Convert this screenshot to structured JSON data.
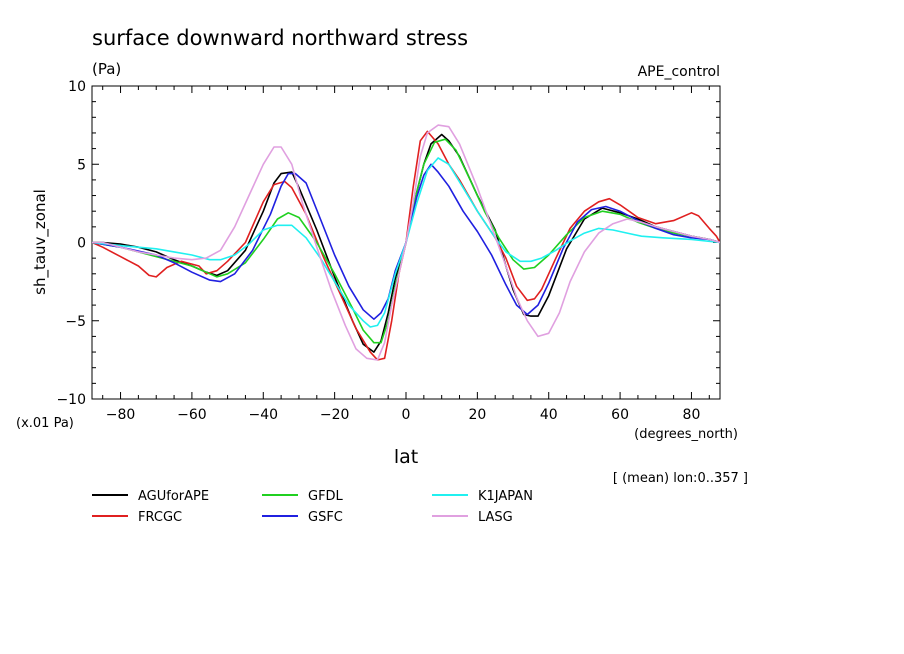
{
  "chart_data": {
    "type": "line",
    "title": "surface downward northward stress",
    "units_label": "(Pa)",
    "experiment_label": "APE_control",
    "ylabel": "sh_tauv_zonal",
    "xlabel": "lat",
    "x_units_label": "(degrees_north)",
    "y_scale_label": "(x.01 Pa)",
    "footnote": "[ (mean) lon:0..357 ]",
    "xlim": [
      -88,
      88
    ],
    "ylim": [
      -10,
      10
    ],
    "x_ticks": [
      -80,
      -60,
      -40,
      -20,
      0,
      20,
      40,
      60,
      80
    ],
    "x_tick_labels": [
      "−80",
      "−60",
      "−40",
      "−20",
      "0",
      "20",
      "40",
      "60",
      "80"
    ],
    "y_ticks": [
      -10,
      -5,
      0,
      5,
      10
    ],
    "y_tick_labels": [
      "−10",
      "−5",
      "0",
      "5",
      "10"
    ],
    "x_minor_step": 5,
    "y_minor_step": 1,
    "grid": false,
    "legend_position": "bottom",
    "series": [
      {
        "name": "AGUforAPE",
        "color": "#000000",
        "points": [
          [
            -88,
            0
          ],
          [
            -85,
            0
          ],
          [
            -80,
            -0.1
          ],
          [
            -75,
            -0.3
          ],
          [
            -70,
            -0.6
          ],
          [
            -65,
            -1.1
          ],
          [
            -60,
            -1.5
          ],
          [
            -56,
            -1.9
          ],
          [
            -53,
            -2.1
          ],
          [
            -50,
            -1.8
          ],
          [
            -45,
            -0.5
          ],
          [
            -40,
            2.0
          ],
          [
            -37,
            3.8
          ],
          [
            -35,
            4.4
          ],
          [
            -32,
            4.5
          ],
          [
            -30,
            3.5
          ],
          [
            -25,
            0.8
          ],
          [
            -20,
            -2.2
          ],
          [
            -15,
            -5.0
          ],
          [
            -12,
            -6.5
          ],
          [
            -9,
            -7.0
          ],
          [
            -7,
            -6.3
          ],
          [
            -5,
            -4.5
          ],
          [
            -3,
            -2.3
          ],
          [
            0,
            0
          ],
          [
            3,
            3.2
          ],
          [
            5,
            5.0
          ],
          [
            7,
            6.3
          ],
          [
            10,
            6.9
          ],
          [
            12,
            6.5
          ],
          [
            15,
            5.5
          ],
          [
            20,
            3.0
          ],
          [
            25,
            0.8
          ],
          [
            28,
            -1.5
          ],
          [
            30,
            -3.0
          ],
          [
            33,
            -4.6
          ],
          [
            35,
            -4.7
          ],
          [
            37,
            -4.7
          ],
          [
            40,
            -3.4
          ],
          [
            45,
            -0.4
          ],
          [
            50,
            1.5
          ],
          [
            55,
            2.2
          ],
          [
            60,
            1.9
          ],
          [
            65,
            1.5
          ],
          [
            70,
            1.0
          ],
          [
            75,
            0.7
          ],
          [
            80,
            0.4
          ],
          [
            85,
            0.2
          ],
          [
            88,
            0
          ]
        ]
      },
      {
        "name": "FRCGC",
        "color": "#e02020",
        "points": [
          [
            -88,
            0
          ],
          [
            -85,
            -0.3
          ],
          [
            -80,
            -0.9
          ],
          [
            -75,
            -1.5
          ],
          [
            -72,
            -2.1
          ],
          [
            -70,
            -2.2
          ],
          [
            -67,
            -1.6
          ],
          [
            -63,
            -1.2
          ],
          [
            -58,
            -1.5
          ],
          [
            -56,
            -2.0
          ],
          [
            -53,
            -1.8
          ],
          [
            -50,
            -1.2
          ],
          [
            -45,
            0
          ],
          [
            -40,
            2.6
          ],
          [
            -37,
            3.7
          ],
          [
            -34,
            3.9
          ],
          [
            -32,
            3.5
          ],
          [
            -28,
            1.8
          ],
          [
            -23,
            -1.0
          ],
          [
            -18,
            -3.5
          ],
          [
            -14,
            -5.5
          ],
          [
            -10,
            -7.0
          ],
          [
            -8,
            -7.5
          ],
          [
            -6,
            -7.4
          ],
          [
            -4,
            -5.0
          ],
          [
            -2,
            -2.0
          ],
          [
            0,
            0
          ],
          [
            2,
            3.5
          ],
          [
            4,
            6.5
          ],
          [
            6,
            7.1
          ],
          [
            9,
            6.3
          ],
          [
            12,
            5.0
          ],
          [
            15,
            4.0
          ],
          [
            20,
            2.0
          ],
          [
            25,
            0.3
          ],
          [
            28,
            -1.0
          ],
          [
            31,
            -2.8
          ],
          [
            34,
            -3.7
          ],
          [
            36,
            -3.6
          ],
          [
            38,
            -3.0
          ],
          [
            42,
            -1.0
          ],
          [
            46,
            0.9
          ],
          [
            50,
            2.0
          ],
          [
            54,
            2.6
          ],
          [
            57,
            2.8
          ],
          [
            60,
            2.4
          ],
          [
            65,
            1.6
          ],
          [
            70,
            1.2
          ],
          [
            75,
            1.4
          ],
          [
            80,
            1.9
          ],
          [
            82,
            1.7
          ],
          [
            85,
            0.9
          ],
          [
            87,
            0.4
          ],
          [
            88,
            0
          ]
        ]
      },
      {
        "name": "GFDL",
        "color": "#20d020",
        "points": [
          [
            -88,
            0
          ],
          [
            -80,
            -0.3
          ],
          [
            -70,
            -0.9
          ],
          [
            -60,
            -1.5
          ],
          [
            -56,
            -1.9
          ],
          [
            -53,
            -2.2
          ],
          [
            -50,
            -2.0
          ],
          [
            -45,
            -1.3
          ],
          [
            -40,
            0.2
          ],
          [
            -36,
            1.5
          ],
          [
            -33,
            1.9
          ],
          [
            -30,
            1.6
          ],
          [
            -25,
            0
          ],
          [
            -20,
            -2.0
          ],
          [
            -15,
            -4.2
          ],
          [
            -12,
            -5.6
          ],
          [
            -9,
            -6.4
          ],
          [
            -7,
            -6.4
          ],
          [
            -5,
            -5.0
          ],
          [
            -3,
            -2.8
          ],
          [
            0,
            0
          ],
          [
            3,
            3.2
          ],
          [
            5,
            5.0
          ],
          [
            8,
            6.4
          ],
          [
            11,
            6.6
          ],
          [
            14,
            5.9
          ],
          [
            18,
            4.0
          ],
          [
            22,
            2.0
          ],
          [
            26,
            0.3
          ],
          [
            30,
            -1.1
          ],
          [
            33,
            -1.7
          ],
          [
            36,
            -1.6
          ],
          [
            40,
            -0.8
          ],
          [
            45,
            0.5
          ],
          [
            50,
            1.6
          ],
          [
            55,
            2.0
          ],
          [
            60,
            1.8
          ],
          [
            65,
            1.3
          ],
          [
            70,
            0.9
          ],
          [
            75,
            0.6
          ],
          [
            80,
            0.4
          ],
          [
            85,
            0.2
          ],
          [
            88,
            0
          ]
        ]
      },
      {
        "name": "GSFC",
        "color": "#2020e0",
        "points": [
          [
            -88,
            0
          ],
          [
            -80,
            -0.3
          ],
          [
            -70,
            -0.8
          ],
          [
            -65,
            -1.3
          ],
          [
            -60,
            -1.9
          ],
          [
            -55,
            -2.4
          ],
          [
            -52,
            -2.5
          ],
          [
            -48,
            -2.0
          ],
          [
            -43,
            -0.5
          ],
          [
            -38,
            1.8
          ],
          [
            -35,
            3.6
          ],
          [
            -33,
            4.4
          ],
          [
            -31,
            4.4
          ],
          [
            -28,
            3.8
          ],
          [
            -24,
            1.5
          ],
          [
            -20,
            -0.8
          ],
          [
            -16,
            -2.8
          ],
          [
            -12,
            -4.3
          ],
          [
            -9,
            -4.9
          ],
          [
            -7,
            -4.5
          ],
          [
            -5,
            -3.6
          ],
          [
            -3,
            -1.8
          ],
          [
            0,
            0
          ],
          [
            3,
            2.9
          ],
          [
            5,
            4.3
          ],
          [
            7,
            5.0
          ],
          [
            9,
            4.5
          ],
          [
            12,
            3.6
          ],
          [
            16,
            2.0
          ],
          [
            20,
            0.7
          ],
          [
            24,
            -0.8
          ],
          [
            28,
            -2.7
          ],
          [
            31,
            -4.0
          ],
          [
            34,
            -4.6
          ],
          [
            37,
            -4.0
          ],
          [
            40,
            -2.6
          ],
          [
            44,
            -0.4
          ],
          [
            48,
            1.3
          ],
          [
            52,
            2.1
          ],
          [
            56,
            2.3
          ],
          [
            60,
            2.0
          ],
          [
            65,
            1.4
          ],
          [
            70,
            0.9
          ],
          [
            75,
            0.5
          ],
          [
            80,
            0.3
          ],
          [
            85,
            0.2
          ],
          [
            88,
            0
          ]
        ]
      },
      {
        "name": "K1JAPAN",
        "color": "#20f0f0",
        "points": [
          [
            -88,
            0
          ],
          [
            -80,
            -0.2
          ],
          [
            -70,
            -0.4
          ],
          [
            -65,
            -0.6
          ],
          [
            -60,
            -0.8
          ],
          [
            -55,
            -1.1
          ],
          [
            -52,
            -1.1
          ],
          [
            -48,
            -0.8
          ],
          [
            -44,
            -0.1
          ],
          [
            -40,
            0.8
          ],
          [
            -36,
            1.1
          ],
          [
            -32,
            1.1
          ],
          [
            -28,
            0.3
          ],
          [
            -24,
            -1.0
          ],
          [
            -20,
            -2.5
          ],
          [
            -16,
            -4.0
          ],
          [
            -12,
            -5.0
          ],
          [
            -10,
            -5.4
          ],
          [
            -8,
            -5.3
          ],
          [
            -6,
            -4.5
          ],
          [
            -3,
            -2.0
          ],
          [
            0,
            0
          ],
          [
            3,
            2.5
          ],
          [
            6,
            4.6
          ],
          [
            9,
            5.4
          ],
          [
            12,
            5.0
          ],
          [
            16,
            3.5
          ],
          [
            20,
            2.0
          ],
          [
            25,
            0.3
          ],
          [
            28,
            -0.6
          ],
          [
            32,
            -1.2
          ],
          [
            35,
            -1.2
          ],
          [
            38,
            -1.0
          ],
          [
            42,
            -0.5
          ],
          [
            46,
            0.1
          ],
          [
            50,
            0.6
          ],
          [
            54,
            0.9
          ],
          [
            58,
            0.8
          ],
          [
            62,
            0.6
          ],
          [
            66,
            0.4
          ],
          [
            72,
            0.3
          ],
          [
            80,
            0.2
          ],
          [
            88,
            0
          ]
        ]
      },
      {
        "name": "LASG",
        "color": "#e0a0e0",
        "points": [
          [
            -88,
            0
          ],
          [
            -85,
            0
          ],
          [
            -80,
            -0.3
          ],
          [
            -75,
            -0.6
          ],
          [
            -70,
            -0.8
          ],
          [
            -65,
            -1.0
          ],
          [
            -60,
            -1.1
          ],
          [
            -56,
            -1.0
          ],
          [
            -52,
            -0.5
          ],
          [
            -48,
            1.0
          ],
          [
            -44,
            3.0
          ],
          [
            -40,
            5.0
          ],
          [
            -37,
            6.1
          ],
          [
            -35,
            6.1
          ],
          [
            -32,
            5.0
          ],
          [
            -29,
            2.5
          ],
          [
            -25,
            -0.3
          ],
          [
            -21,
            -3.0
          ],
          [
            -17,
            -5.3
          ],
          [
            -14,
            -6.8
          ],
          [
            -11,
            -7.4
          ],
          [
            -8,
            -7.5
          ],
          [
            -6,
            -6.4
          ],
          [
            -4,
            -4.0
          ],
          [
            -2,
            -2.0
          ],
          [
            0,
            0
          ],
          [
            2,
            2.5
          ],
          [
            4,
            5.5
          ],
          [
            6,
            7.0
          ],
          [
            9,
            7.5
          ],
          [
            12,
            7.4
          ],
          [
            15,
            6.3
          ],
          [
            20,
            3.5
          ],
          [
            24,
            1.0
          ],
          [
            28,
            -1.5
          ],
          [
            31,
            -3.5
          ],
          [
            34,
            -5.0
          ],
          [
            37,
            -6.0
          ],
          [
            40,
            -5.8
          ],
          [
            43,
            -4.5
          ],
          [
            46,
            -2.5
          ],
          [
            50,
            -0.6
          ],
          [
            54,
            0.6
          ],
          [
            58,
            1.2
          ],
          [
            62,
            1.5
          ],
          [
            66,
            1.3
          ],
          [
            70,
            1.0
          ],
          [
            75,
            0.7
          ],
          [
            80,
            0.4
          ],
          [
            85,
            0.2
          ],
          [
            88,
            0
          ]
        ]
      }
    ]
  }
}
